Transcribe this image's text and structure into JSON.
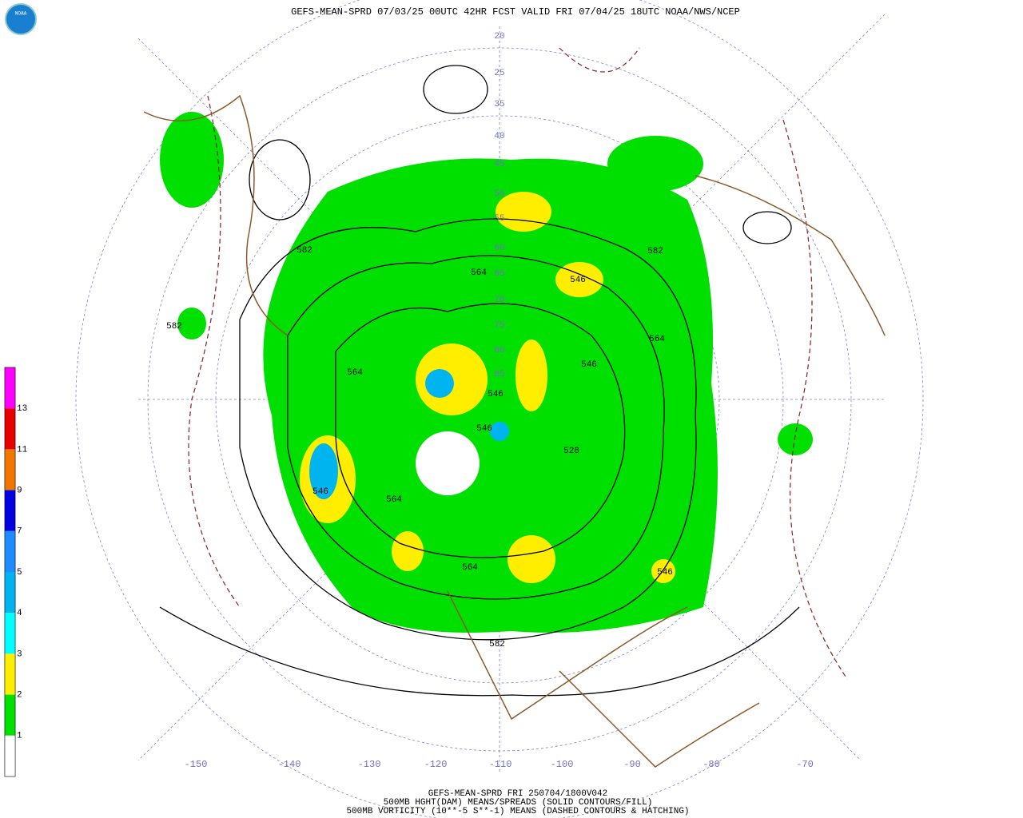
{
  "header": {
    "title": "GEFS-MEAN-SPRD 07/03/25 00UTC 42HR FCST VALID FRI 07/04/25 18UTC NOAA/NWS/NCEP",
    "logo": "NOAA"
  },
  "colorbar": {
    "labels": [
      "13",
      "11",
      "9",
      "7",
      "5",
      "4",
      "3",
      "2",
      "1"
    ],
    "colors": [
      "#ff00ff",
      "#e60000",
      "#f07800",
      "#0000e0",
      "#1e8cff",
      "#00b4f0",
      "#00ffff",
      "#ffee00",
      "#00e000",
      "#ffffff"
    ]
  },
  "map": {
    "lon_labels": [
      "-150",
      "-140",
      "-130",
      "-120",
      "-110",
      "-100",
      "-90",
      "-80",
      "-70"
    ],
    "lat_labels": [
      "20",
      "25",
      "35",
      "40",
      "45",
      "50",
      "55",
      "60",
      "65",
      "70",
      "75",
      "80",
      "85"
    ],
    "contour_labels": [
      "582",
      "582",
      "582",
      "564",
      "564",
      "564",
      "546",
      "546",
      "546",
      "546",
      "546",
      "564",
      "528",
      "564",
      "582",
      "546"
    ]
  },
  "footer": {
    "lines": [
      "GEFS-MEAN-SPRD FRI 250704/1800V042",
      "500MB HGHT(DAM) MEANS/SPREADS (SOLID CONTOURS/FILL)",
      "500MB VORTICITY (10**-5 S**-1) MEANS (DASHED CONTOURS & HATCHING)"
    ]
  }
}
